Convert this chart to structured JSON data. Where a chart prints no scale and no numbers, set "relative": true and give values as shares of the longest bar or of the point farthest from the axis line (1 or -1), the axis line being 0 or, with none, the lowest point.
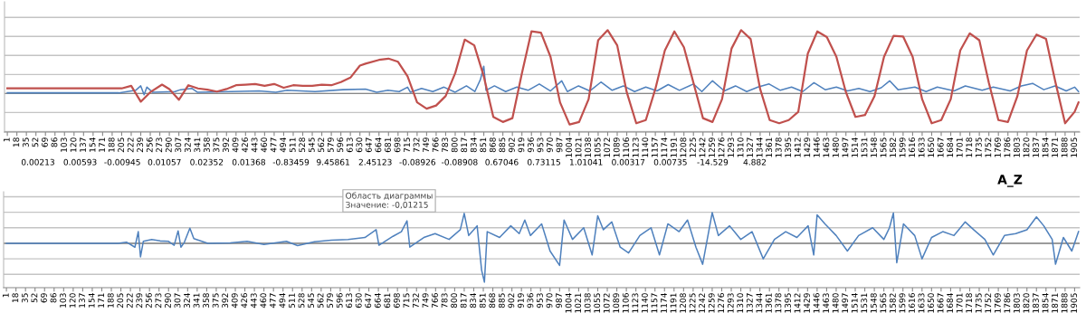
{
  "chart_data": [
    {
      "type": "line",
      "relative": true,
      "grid": "y",
      "marker": "none",
      "line_style": "solid",
      "xlim": [
        -4,
        1914
      ],
      "xticks": [
        1,
        18,
        35,
        52,
        69,
        86,
        103,
        120,
        137,
        154,
        171,
        188,
        205,
        222,
        239,
        256,
        273,
        290,
        307,
        324,
        341,
        358,
        375,
        392,
        409,
        426,
        443,
        460,
        477,
        494,
        511,
        528,
        545,
        562,
        579,
        596,
        613,
        630,
        647,
        664,
        681,
        698,
        715,
        732,
        749,
        766,
        783,
        800,
        817,
        834,
        851,
        868,
        885,
        902,
        919,
        936,
        953,
        970,
        987,
        1004,
        1021,
        1038,
        1055,
        1072,
        1089,
        1106,
        1123,
        1140,
        1157,
        1174,
        1191,
        1208,
        1225,
        1242,
        1259,
        1276,
        1293,
        1310,
        1327,
        1344,
        1361,
        1378,
        1395,
        1412,
        1429,
        1446,
        1463,
        1480,
        1497,
        1514,
        1531,
        1548,
        1565,
        1582,
        1599,
        1616,
        1633,
        1650,
        1667,
        1684,
        1701,
        1718,
        1735,
        1752,
        1769,
        1786,
        1803,
        1820,
        1837,
        1854,
        1871,
        1888,
        1905
      ],
      "annotations": [
        "0.00213",
        "0.00593",
        "-0.00945",
        "0.01057",
        "0.02352",
        "0.01368",
        "-0.83459",
        "9.45861",
        "2.45123",
        "-0.08926",
        "-0.08908",
        "0.67046",
        "0.73115",
        "1.01041",
        "0.00317",
        "0.00735",
        "-14.529",
        "4.882"
      ],
      "series": [
        {
          "color": "#4f81bd",
          "x": [
            1,
            100,
            200,
            230,
            239,
            245,
            250,
            260,
            300,
            310,
            330,
            340,
            400,
            450,
            480,
            500,
            550,
            600,
            640,
            660,
            680,
            700,
            715,
            720,
            740,
            760,
            780,
            800,
            820,
            835,
            845,
            851,
            855,
            870,
            890,
            910,
            930,
            950,
            970,
            990,
            1000,
            1020,
            1040,
            1060,
            1080,
            1100,
            1120,
            1140,
            1160,
            1180,
            1200,
            1225,
            1240,
            1259,
            1280,
            1300,
            1320,
            1340,
            1360,
            1380,
            1400,
            1420,
            1440,
            1460,
            1480,
            1500,
            1520,
            1540,
            1560,
            1575,
            1590,
            1620,
            1640,
            1660,
            1690,
            1710,
            1740,
            1760,
            1790,
            1810,
            1830,
            1850,
            1870,
            1890,
            1905,
            1912
          ],
          "values": [
            0.01,
            0.01,
            0.01,
            0.05,
            0.12,
            -0.02,
            0.1,
            0.02,
            0.03,
            0.06,
            0.08,
            0.02,
            0.03,
            0.04,
            0.02,
            0.05,
            0.03,
            0.06,
            0.07,
            0.02,
            0.05,
            0.03,
            0.1,
            0.02,
            0.08,
            0.03,
            0.1,
            0.02,
            0.12,
            0.03,
            0.22,
            0.43,
            0.05,
            0.12,
            0.03,
            0.1,
            0.05,
            0.15,
            0.04,
            0.2,
            0.03,
            0.12,
            0.04,
            0.18,
            0.05,
            0.12,
            0.03,
            0.1,
            0.04,
            0.14,
            0.05,
            0.15,
            0.03,
            0.2,
            0.04,
            0.12,
            0.03,
            0.1,
            0.15,
            0.05,
            0.1,
            0.03,
            0.17,
            0.06,
            0.1,
            0.04,
            0.08,
            0.03,
            0.09,
            0.2,
            0.06,
            0.1,
            0.03,
            0.1,
            0.04,
            0.12,
            0.05,
            0.1,
            0.04,
            0.12,
            0.16,
            0.06,
            0.12,
            0.04,
            0.1,
            0.03
          ]
        },
        {
          "color": "#c0504d",
          "x": [
            1,
            100,
            205,
            222,
            239,
            256,
            277,
            290,
            307,
            324,
            341,
            358,
            375,
            392,
            409,
            426,
            443,
            460,
            477,
            494,
            511,
            528,
            545,
            562,
            579,
            596,
            613,
            630,
            640,
            664,
            681,
            698,
            715,
            732,
            749,
            766,
            783,
            800,
            817,
            834,
            851,
            868,
            885,
            902,
            919,
            936,
            953,
            970,
            987,
            1004,
            1021,
            1038,
            1055,
            1072,
            1089,
            1106,
            1123,
            1140,
            1157,
            1174,
            1191,
            1208,
            1225,
            1242,
            1259,
            1276,
            1293,
            1310,
            1327,
            1344,
            1361,
            1378,
            1395,
            1412,
            1429,
            1446,
            1463,
            1480,
            1497,
            1514,
            1531,
            1548,
            1565,
            1582,
            1599,
            1616,
            1633,
            1650,
            1667,
            1684,
            1701,
            1718,
            1735,
            1752,
            1769,
            1786,
            1803,
            1820,
            1837,
            1854,
            1871,
            1888,
            1905,
            1912
          ],
          "values": [
            0.08,
            0.08,
            0.08,
            0.12,
            -0.13,
            0.02,
            0.14,
            0.07,
            -0.1,
            0.13,
            0.08,
            0.06,
            0.03,
            0.07,
            0.13,
            0.14,
            0.15,
            0.12,
            0.15,
            0.09,
            0.13,
            0.12,
            0.12,
            0.14,
            0.13,
            0.18,
            0.25,
            0.44,
            0.47,
            0.53,
            0.55,
            0.5,
            0.27,
            -0.14,
            -0.24,
            -0.19,
            -0.04,
            0.32,
            0.85,
            0.76,
            0.27,
            -0.37,
            -0.45,
            -0.39,
            0.32,
            0.98,
            0.96,
            0.58,
            -0.14,
            -0.49,
            -0.45,
            -0.09,
            0.84,
            1.0,
            0.76,
            0.02,
            -0.47,
            -0.42,
            0.07,
            0.68,
            0.98,
            0.73,
            0.17,
            -0.39,
            -0.45,
            -0.09,
            0.71,
            1.0,
            0.86,
            0.07,
            -0.42,
            -0.47,
            -0.42,
            -0.29,
            0.63,
            0.98,
            0.89,
            0.58,
            0.02,
            -0.37,
            -0.34,
            -0.04,
            0.58,
            0.91,
            0.9,
            0.58,
            -0.09,
            -0.47,
            -0.42,
            -0.09,
            0.68,
            0.95,
            0.84,
            0.17,
            -0.42,
            -0.45,
            -0.04,
            0.68,
            0.93,
            0.86,
            0.17,
            -0.47,
            -0.29,
            -0.14
          ]
        }
      ]
    },
    {
      "type": "line",
      "relative": true,
      "grid": "y",
      "marker": "none",
      "line_style": "solid",
      "title": "A_Z",
      "xlim": [
        -4,
        1914
      ],
      "xticks": [
        1,
        18,
        35,
        52,
        69,
        86,
        103,
        120,
        137,
        154,
        171,
        188,
        205,
        222,
        239,
        256,
        273,
        290,
        307,
        324,
        341,
        358,
        375,
        392,
        409,
        426,
        443,
        460,
        477,
        494,
        511,
        528,
        545,
        562,
        579,
        596,
        613,
        630,
        647,
        664,
        681,
        698,
        715,
        732,
        749,
        766,
        783,
        800,
        817,
        834,
        851,
        868,
        885,
        902,
        919,
        936,
        953,
        970,
        987,
        1004,
        1021,
        1038,
        1055,
        1072,
        1089,
        1106,
        1123,
        1140,
        1157,
        1174,
        1191,
        1208,
        1225,
        1242,
        1259,
        1276,
        1293,
        1310,
        1327,
        1344,
        1361,
        1378,
        1395,
        1412,
        1429,
        1446,
        1463,
        1480,
        1497,
        1514,
        1531,
        1548,
        1565,
        1582,
        1599,
        1616,
        1633,
        1650,
        1667,
        1684,
        1701,
        1718,
        1735,
        1752,
        1769,
        1786,
        1803,
        1820,
        1837,
        1854,
        1871,
        1888,
        1905
      ],
      "annotations": [
        "Область диаграммы",
        "Значение: -0,01215"
      ],
      "series": [
        {
          "color": "#4f81bd",
          "x": [
            1,
            200,
            215,
            230,
            236,
            240,
            245,
            260,
            275,
            290,
            300,
            307,
            312,
            318,
            328,
            335,
            360,
            400,
            430,
            460,
            500,
            520,
            550,
            580,
            610,
            640,
            660,
            665,
            690,
            705,
            715,
            720,
            745,
            765,
            790,
            810,
            817,
            825,
            840,
            848,
            853,
            858,
            880,
            900,
            915,
            925,
            935,
            955,
            970,
            987,
            995,
            1010,
            1030,
            1045,
            1055,
            1065,
            1080,
            1095,
            1110,
            1130,
            1150,
            1165,
            1180,
            1200,
            1215,
            1230,
            1242,
            1259,
            1270,
            1290,
            1310,
            1330,
            1350,
            1370,
            1390,
            1410,
            1430,
            1440,
            1446,
            1460,
            1480,
            1500,
            1520,
            1545,
            1565,
            1575,
            1582,
            1588,
            1600,
            1620,
            1633,
            1650,
            1670,
            1690,
            1710,
            1725,
            1745,
            1760,
            1780,
            1800,
            1820,
            1837,
            1850,
            1865,
            1871,
            1885,
            1900,
            1912
          ],
          "values": [
            0,
            0,
            0.03,
            -0.1,
            0.3,
            -0.35,
            0.05,
            0.1,
            0.06,
            0.05,
            -0.05,
            0.32,
            -0.1,
            0.02,
            0.39,
            0.12,
            0,
            0.01,
            0.05,
            -0.03,
            0.05,
            -0.06,
            0.04,
            0.08,
            0.1,
            0.15,
            0.35,
            -0.05,
            0.18,
            0.3,
            0.58,
            -0.1,
            0.15,
            0.25,
            0.1,
            0.35,
            0.77,
            0.2,
            0.45,
            -0.69,
            -1.0,
            0.3,
            0.15,
            0.45,
            0.25,
            0.6,
            0.2,
            0.5,
            -0.2,
            -0.57,
            0.6,
            0.1,
            0.4,
            -0.3,
            0.71,
            0.35,
            0.55,
            -0.1,
            -0.25,
            0.2,
            0.4,
            -0.3,
            0.5,
            0.3,
            0.6,
            -0.1,
            -0.54,
            0.79,
            0.2,
            0.45,
            0.1,
            0.3,
            -0.4,
            0.1,
            0.3,
            0.15,
            0.45,
            -0.3,
            0.73,
            0.5,
            0.2,
            -0.2,
            0.2,
            0.4,
            0.1,
            0.4,
            0.78,
            -0.5,
            0.5,
            0.2,
            -0.4,
            0.15,
            0.3,
            0.2,
            0.55,
            0.35,
            0.1,
            -0.3,
            0.2,
            0.25,
            0.35,
            0.68,
            0.45,
            0.1,
            -0.54,
            0.15,
            -0.2,
            0.3
          ]
        }
      ]
    }
  ]
}
